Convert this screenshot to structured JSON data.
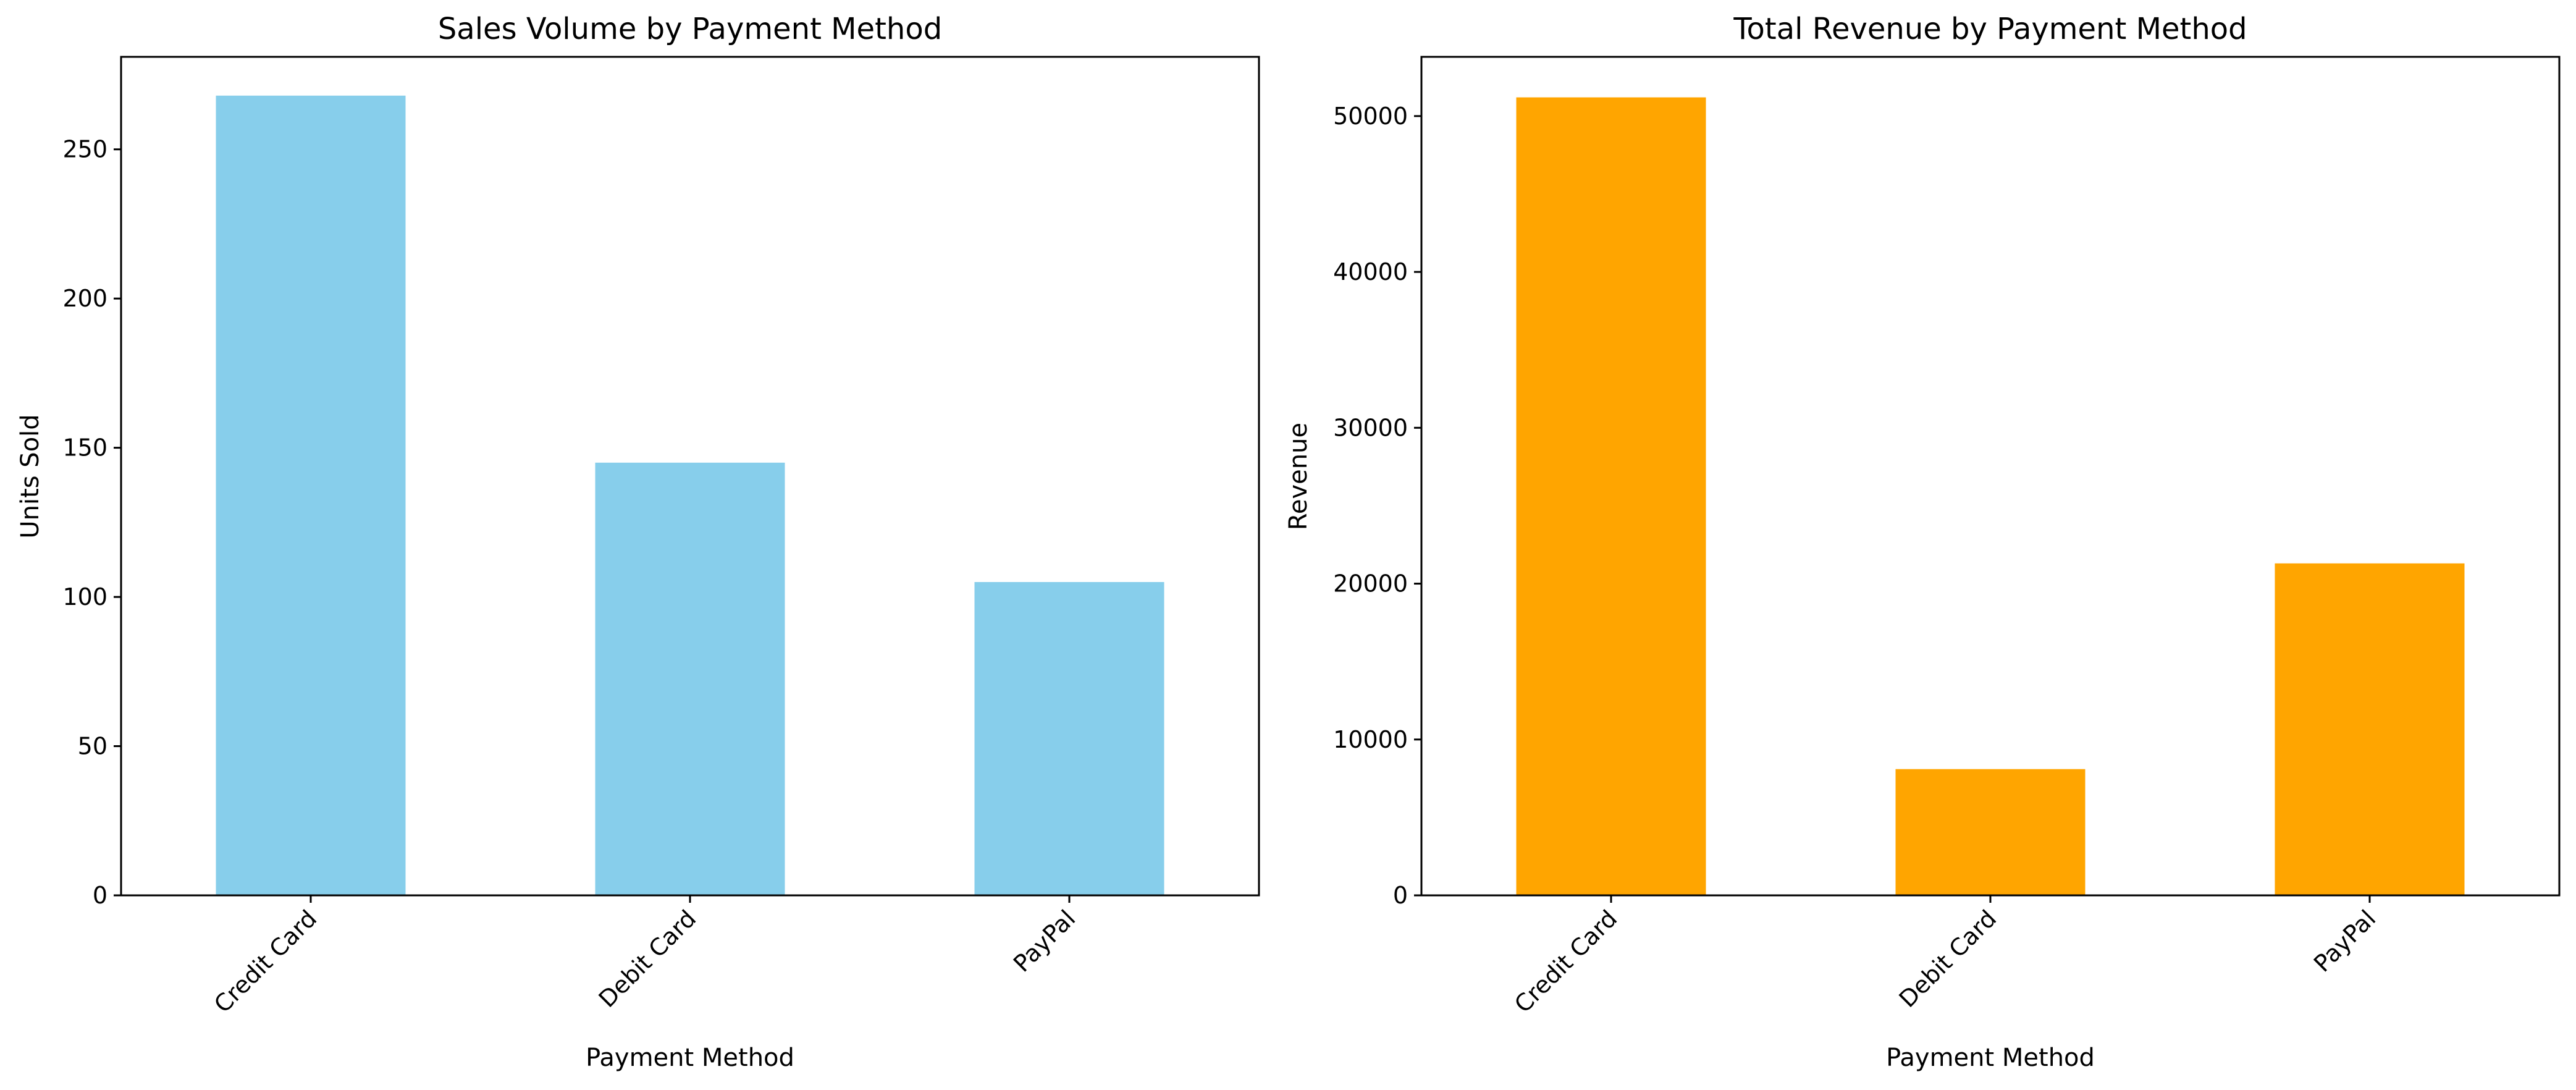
{
  "chart_data": [
    {
      "type": "bar",
      "title": "Sales Volume by Payment Method",
      "xlabel": "Payment Method",
      "ylabel": "Units Sold",
      "categories": [
        "Credit Card",
        "Debit Card",
        "PayPal"
      ],
      "values": [
        268,
        145,
        105
      ],
      "ylim": [
        0,
        281
      ],
      "yticks": [
        0,
        50,
        100,
        150,
        200,
        250
      ],
      "color": "#87CEEB",
      "grid": false
    },
    {
      "type": "bar",
      "title": "Total Revenue by Payment Method",
      "xlabel": "Payment Method",
      "ylabel": "Revenue",
      "categories": [
        "Credit Card",
        "Debit Card",
        "PayPal"
      ],
      "values": [
        51200,
        8100,
        21300
      ],
      "ylim": [
        0,
        53800
      ],
      "yticks": [
        0,
        10000,
        20000,
        30000,
        40000,
        50000
      ],
      "color": "#FFA500",
      "grid": false
    }
  ]
}
